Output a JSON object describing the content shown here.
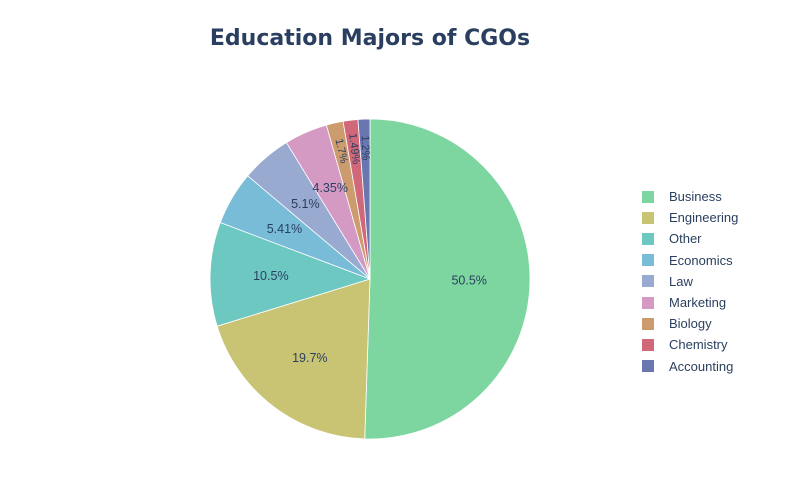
{
  "chart_data": {
    "type": "pie",
    "title": "Education Majors of CGOs",
    "categories": [
      "Business",
      "Engineering",
      "Other",
      "Economics",
      "Law",
      "Marketing",
      "Biology",
      "Chemistry",
      "Accounting"
    ],
    "values": [
      50.5,
      19.7,
      10.5,
      5.41,
      5.1,
      4.35,
      1.7,
      1.49,
      1.2
    ],
    "labels": [
      "50.5%",
      "19.7%",
      "10.5%",
      "5.41%",
      "5.1%",
      "4.35%",
      "1.7%",
      "1.49%",
      "1.2%"
    ],
    "colors": [
      "#7dd6a0",
      "#c9c474",
      "#6ec8c2",
      "#79bcd8",
      "#99aad0",
      "#d49ac4",
      "#cc9c6e",
      "#d0687a",
      "#6a76b0"
    ],
    "legend_position": "right",
    "start": "12 o'clock",
    "direction": "clockwise"
  }
}
